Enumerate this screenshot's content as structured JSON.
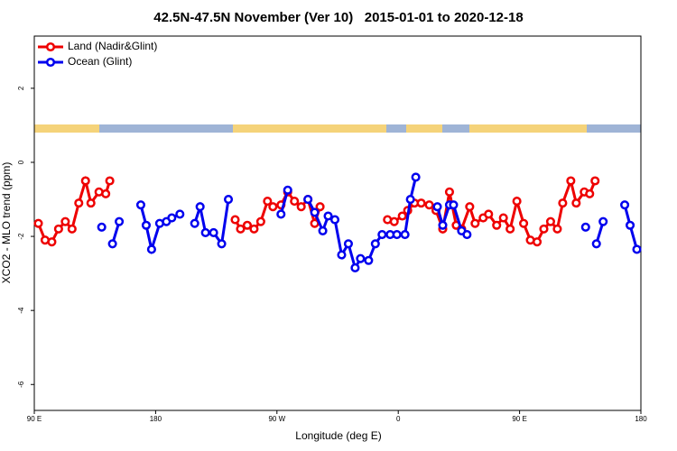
{
  "chart_data": {
    "type": "line",
    "title": "42.5N-47.5N November (Ver 10)   2015-01-01 to 2020-12-18",
    "x_label": "Longitude (deg E)",
    "y_label": "XCO2 - MLO trend (ppm)",
    "xlim": [
      90,
      540
    ],
    "xticks": [
      {
        "value": 90,
        "label": "90 E"
      },
      {
        "value": 180,
        "label": "180"
      },
      {
        "value": 270,
        "label": "90 W"
      },
      {
        "value": 360,
        "label": "0"
      },
      {
        "value": 450,
        "label": "90 E"
      },
      {
        "value": 540,
        "label": "180"
      }
    ],
    "ylim": [
      -6.7,
      3.41
    ],
    "yticks": [
      -6,
      -4,
      -2,
      0,
      2
    ],
    "legend": "top-left",
    "series": [
      {
        "name": "Land (Nadir&Glint)",
        "color": "#ee0000",
        "x": [
          93,
          98,
          103,
          108,
          113,
          118,
          123,
          128,
          132,
          138,
          143,
          146,
          null,
          239,
          243,
          248,
          253,
          258,
          263,
          267,
          273,
          278,
          283,
          288,
          293,
          298,
          302,
          null,
          352,
          357,
          363,
          367,
          372,
          377,
          383,
          388,
          393,
          398,
          403,
          407,
          413,
          417,
          423,
          427,
          433,
          438,
          443,
          448,
          453,
          458,
          463,
          468,
          473,
          478,
          482,
          488,
          492,
          498,
          502,
          506
        ],
        "values": [
          -1.65,
          -2.1,
          -2.15,
          -1.8,
          -1.6,
          -1.8,
          -1.1,
          -0.5,
          -1.1,
          -0.8,
          -0.85,
          -0.5,
          null,
          -1.55,
          -1.8,
          -1.7,
          -1.8,
          -1.6,
          -1.05,
          -1.2,
          -1.15,
          -0.8,
          -1.05,
          -1.2,
          -1.0,
          -1.65,
          -1.2,
          null,
          -1.55,
          -1.6,
          -1.45,
          -1.3,
          -1.1,
          -1.1,
          -1.15,
          -1.3,
          -1.8,
          -0.8,
          -1.7,
          -1.8,
          -1.2,
          -1.65,
          -1.5,
          -1.4,
          -1.7,
          -1.5,
          -1.8,
          -1.05,
          -1.65,
          -2.1,
          -2.15,
          -1.8,
          -1.6,
          -1.8,
          -1.1,
          -0.5,
          -1.1,
          -0.8,
          -0.85,
          -0.5
        ]
      },
      {
        "name": "Ocean (Glint)",
        "color": "#0000ee",
        "x": [
          140,
          null,
          148,
          153,
          null,
          169,
          173,
          177,
          183,
          188,
          192,
          198,
          null,
          209,
          213,
          217,
          223,
          229,
          234,
          null,
          273,
          278,
          null,
          293,
          298,
          304,
          308,
          313,
          318,
          323,
          328,
          332,
          338,
          343,
          348,
          354,
          359,
          365,
          369,
          373,
          null,
          389,
          393,
          398,
          401,
          407,
          411,
          null,
          499,
          null,
          507,
          512,
          null,
          528,
          532,
          537
        ],
        "values": [
          -1.75,
          null,
          -2.2,
          -1.6,
          null,
          -1.15,
          -1.7,
          -2.35,
          -1.65,
          -1.6,
          -1.5,
          -1.4,
          null,
          -1.65,
          -1.2,
          -1.9,
          -1.9,
          -2.2,
          -1.0,
          null,
          -1.4,
          -0.75,
          null,
          -1.0,
          -1.35,
          -1.85,
          -1.45,
          -1.55,
          -2.5,
          -2.2,
          -2.85,
          -2.6,
          -2.65,
          -2.2,
          -1.95,
          -1.95,
          -1.95,
          -1.95,
          -1.0,
          -0.4,
          null,
          -1.2,
          -1.7,
          -1.15,
          -1.15,
          -1.85,
          -1.95,
          null,
          -1.75,
          null,
          -2.2,
          -1.6,
          null,
          -1.15,
          -1.7,
          -2.35
        ]
      }
    ]
  }
}
